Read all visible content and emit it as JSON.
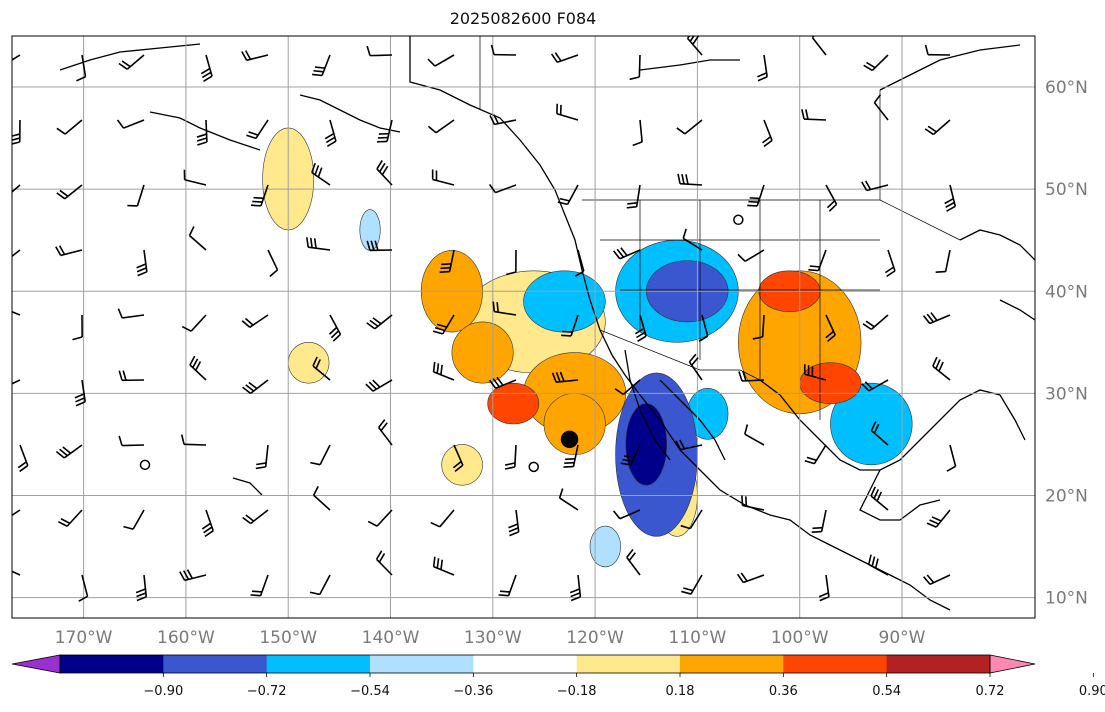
{
  "title": "2025082600 F084",
  "map": {
    "projection": "equirectangular",
    "lon_range": [
      -177,
      -77
    ],
    "lat_range": [
      8,
      65
    ],
    "gridlines": true,
    "lat_ticks": [
      {
        "value": 60,
        "label": "60°N"
      },
      {
        "value": 50,
        "label": "50°N"
      },
      {
        "value": 40,
        "label": "40°N"
      },
      {
        "value": 30,
        "label": "30°N"
      },
      {
        "value": 20,
        "label": "20°N"
      },
      {
        "value": 10,
        "label": "10°N"
      }
    ],
    "lon_ticks": [
      {
        "value": -170,
        "label": "170°W"
      },
      {
        "value": -160,
        "label": "160°W"
      },
      {
        "value": -150,
        "label": "150°W"
      },
      {
        "value": -140,
        "label": "140°W"
      },
      {
        "value": -130,
        "label": "130°W"
      },
      {
        "value": -120,
        "label": "120°W"
      },
      {
        "value": -110,
        "label": "110°W"
      },
      {
        "value": -100,
        "label": "100°W"
      },
      {
        "value": -90,
        "label": "90°W"
      }
    ]
  },
  "colorbar": {
    "orientation": "horizontal",
    "extend": "both",
    "colors": [
      "#9b30d0",
      "#00008b",
      "#3a57d0",
      "#00bfff",
      "#b0e0ff",
      "#ffffff",
      "#ffe98c",
      "#ffa500",
      "#ff4500",
      "#b22222",
      "#ff88b0"
    ],
    "tick_labels": [
      "−0.90",
      "−0.72",
      "−0.54",
      "−0.36",
      "−0.18",
      "0.18",
      "0.36",
      "0.54",
      "0.72",
      "0.90"
    ]
  },
  "anomaly_regions": [
    {
      "lon": -126,
      "lat": 37,
      "rlon": 7,
      "rlat": 5,
      "value": 0.3
    },
    {
      "lon": -122,
      "lat": 30,
      "rlon": 5,
      "rlat": 4,
      "value": 0.5
    },
    {
      "lon": -128,
      "lat": 29,
      "rlon": 2.5,
      "rlat": 2,
      "value": 0.65
    },
    {
      "lon": -122,
      "lat": 27,
      "rlon": 3,
      "rlat": 3,
      "value": 0.5
    },
    {
      "lon": -131,
      "lat": 34,
      "rlon": 3,
      "rlat": 3,
      "value": 0.45
    },
    {
      "lon": -134,
      "lat": 40,
      "rlon": 3,
      "rlat": 4,
      "value": 0.4
    },
    {
      "lon": -114,
      "lat": 24,
      "rlon": 4,
      "rlat": 8,
      "value": -0.6
    },
    {
      "lon": -115,
      "lat": 25,
      "rlon": 2,
      "rlat": 4,
      "value": -0.8
    },
    {
      "lon": -112,
      "lat": 40,
      "rlon": 6,
      "rlat": 5,
      "value": -0.45
    },
    {
      "lon": -111,
      "lat": 40,
      "rlon": 4,
      "rlat": 3,
      "value": -0.65
    },
    {
      "lon": -123,
      "lat": 39,
      "rlon": 4,
      "rlat": 3,
      "value": -0.4
    },
    {
      "lon": -109,
      "lat": 28,
      "rlon": 2,
      "rlat": 2.5,
      "value": -0.5
    },
    {
      "lon": -93,
      "lat": 27,
      "rlon": 4,
      "rlat": 4,
      "value": -0.4
    },
    {
      "lon": -100,
      "lat": 35,
      "rlon": 6,
      "rlat": 7,
      "value": 0.4
    },
    {
      "lon": -101,
      "lat": 40,
      "rlon": 3,
      "rlat": 2,
      "value": 0.65
    },
    {
      "lon": -97,
      "lat": 31,
      "rlon": 3,
      "rlat": 2,
      "value": 0.6
    },
    {
      "lon": -119,
      "lat": 15,
      "rlon": 1.5,
      "rlat": 2,
      "value": -0.35
    },
    {
      "lon": -112,
      "lat": 20,
      "rlon": 2,
      "rlat": 4,
      "value": 0.3
    },
    {
      "lon": -150,
      "lat": 51,
      "rlon": 2.5,
      "rlat": 5,
      "value": 0.25
    },
    {
      "lon": -148,
      "lat": 33,
      "rlon": 2,
      "rlat": 2,
      "value": 0.25
    },
    {
      "lon": -133,
      "lat": 23,
      "rlon": 2,
      "rlat": 2,
      "value": 0.25
    },
    {
      "lon": -142,
      "lat": 46,
      "rlon": 1,
      "rlat": 2,
      "value": -0.25
    }
  ],
  "markers": [
    {
      "lon": -122.5,
      "lat": 25.5,
      "type": "filled"
    },
    {
      "lon": -126,
      "lat": 22.8,
      "type": "open"
    },
    {
      "lon": -164,
      "lat": 23,
      "type": "open"
    },
    {
      "lon": -106,
      "lat": 47,
      "type": "open"
    }
  ]
}
